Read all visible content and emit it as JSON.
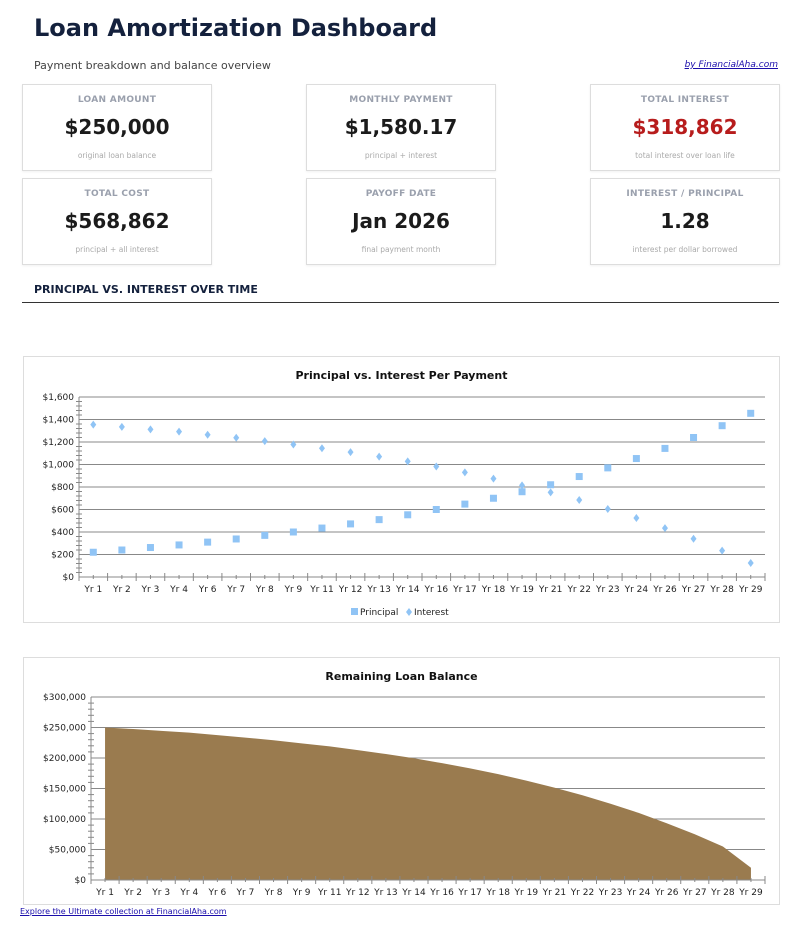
{
  "header": {
    "title": "Loan Amortization Dashboard",
    "subtitle": "Payment breakdown and balance overview",
    "byline": "by FinancialAha.com"
  },
  "cards": [
    {
      "label": "LOAN AMOUNT",
      "value": "$250,000",
      "note": "original loan balance"
    },
    {
      "label": "MONTHLY PAYMENT",
      "value": "$1,580.17",
      "note": "principal + interest"
    },
    {
      "label": "TOTAL INTEREST",
      "value": "$318,862",
      "note": "total interest over loan life",
      "color": "#b71c1c"
    },
    {
      "label": "TOTAL COST",
      "value": "$568,862",
      "note": "principal + all interest"
    },
    {
      "label": "PAYOFF DATE",
      "value": "Jan 2026",
      "note": "final payment month"
    },
    {
      "label": "INTEREST / PRINCIPAL",
      "value": "1.28",
      "note": "interest per dollar borrowed"
    }
  ],
  "section_title": "PRINCIPAL VS. INTEREST OVER TIME",
  "footer_link": "Explore the Ultimate collection at FinancialAha.com",
  "chart_data": [
    {
      "type": "scatter",
      "title": "Principal vs. Interest Per Payment",
      "categories": [
        "Yr 1",
        "Yr 2",
        "Yr 3",
        "Yr 4",
        "Yr 6",
        "Yr 7",
        "Yr 8",
        "Yr 9",
        "Yr 11",
        "Yr 12",
        "Yr 13",
        "Yr 14",
        "Yr 16",
        "Yr 17",
        "Yr 18",
        "Yr 19",
        "Yr 21",
        "Yr 22",
        "Yr 23",
        "Yr 24",
        "Yr 26",
        "Yr 27",
        "Yr 28",
        "Yr 29"
      ],
      "yticks": [
        "$0",
        "$200",
        "$400",
        "$600",
        "$800",
        "$1,000",
        "$1,200",
        "$1,400",
        "$1,600"
      ],
      "ylim": [
        0,
        1600
      ],
      "grid": true,
      "legend": "bottom",
      "series": [
        {
          "name": "Principal",
          "marker": "square",
          "color": "#90c4f5",
          "values": [
            220,
            240,
            262,
            285,
            310,
            338,
            370,
            400,
            435,
            472,
            510,
            553,
            600,
            648,
            700,
            758,
            820,
            893,
            970,
            1053,
            1143,
            1240,
            1345,
            1455
          ]
        },
        {
          "name": "Interest",
          "marker": "diamond",
          "color": "#90c4f5",
          "values": [
            1355,
            1335,
            1312,
            1292,
            1265,
            1238,
            1208,
            1178,
            1145,
            1110,
            1070,
            1028,
            982,
            930,
            875,
            815,
            752,
            685,
            605,
            525,
            435,
            340,
            235,
            125
          ]
        }
      ]
    },
    {
      "type": "area",
      "title": "Remaining Loan Balance",
      "categories": [
        "Yr 1",
        "Yr 2",
        "Yr 3",
        "Yr 4",
        "Yr 6",
        "Yr 7",
        "Yr 8",
        "Yr 9",
        "Yr 11",
        "Yr 12",
        "Yr 13",
        "Yr 14",
        "Yr 16",
        "Yr 17",
        "Yr 18",
        "Yr 19",
        "Yr 21",
        "Yr 22",
        "Yr 23",
        "Yr 24",
        "Yr 26",
        "Yr 27",
        "Yr 28",
        "Yr 29"
      ],
      "yticks": [
        "$0",
        "$50,000",
        "$100,000",
        "$150,000",
        "$200,000",
        "$250,000",
        "$300,000"
      ],
      "ylim": [
        0,
        300000
      ],
      "grid": true,
      "color": "#9a7b4f",
      "values": [
        250000,
        247500,
        244500,
        241500,
        237500,
        233500,
        229000,
        224000,
        219000,
        213000,
        206500,
        199500,
        191500,
        183000,
        173500,
        163000,
        151500,
        139000,
        125000,
        110000,
        93000,
        75000,
        55000,
        20000
      ]
    }
  ]
}
